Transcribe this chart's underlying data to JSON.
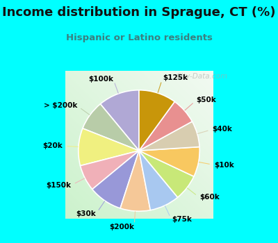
{
  "title": "Income distribution in Sprague, CT (%)",
  "subtitle": "Hispanic or Latino residents",
  "bg_cyan": "#00FFFF",
  "chart_bg_color": "#e0f5ee",
  "slices": [
    {
      "label": "$100k",
      "value": 11,
      "color": "#b0a8d5"
    },
    {
      "label": "> $200k",
      "value": 8,
      "color": "#b8cca8"
    },
    {
      "label": "$20k",
      "value": 10,
      "color": "#f0f080"
    },
    {
      "label": "$150k",
      "value": 7,
      "color": "#f0b0b8"
    },
    {
      "label": "$30k",
      "value": 9,
      "color": "#9898d8"
    },
    {
      "label": "$200k",
      "value": 8,
      "color": "#f5c898"
    },
    {
      "label": "$75k",
      "value": 8,
      "color": "#a8c8f0"
    },
    {
      "label": "$60k",
      "value": 7,
      "color": "#c8e878"
    },
    {
      "label": "$10k",
      "value": 8,
      "color": "#f8c860"
    },
    {
      "label": "$40k",
      "value": 7,
      "color": "#d8cdb0"
    },
    {
      "label": "$50k",
      "value": 7,
      "color": "#e89090"
    },
    {
      "label": "$125k",
      "value": 10,
      "color": "#c8960a"
    }
  ],
  "watermark": "City-Data.com",
  "title_fontsize": 13,
  "subtitle_fontsize": 9.5,
  "label_fontsize": 7.5
}
